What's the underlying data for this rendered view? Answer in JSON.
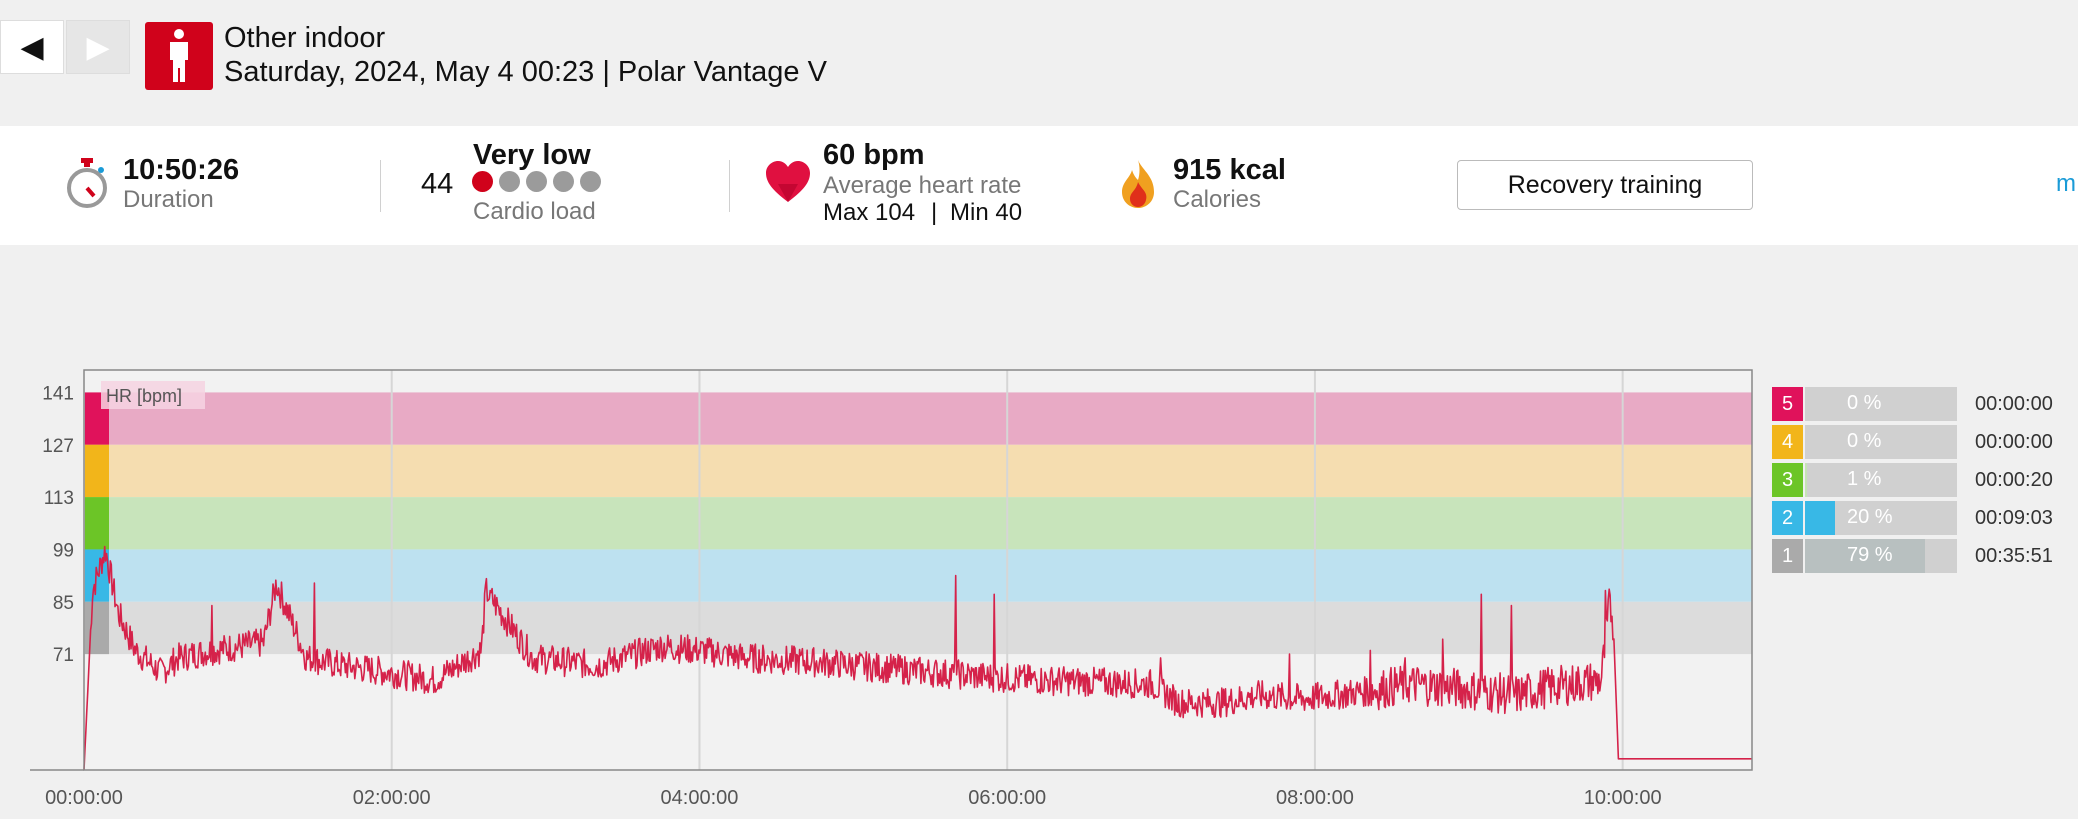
{
  "nav": {
    "prev_glyph": "◀",
    "next_glyph": "▶"
  },
  "header": {
    "sport_icon": "person-standing-icon",
    "sport": "Other indoor",
    "subtitle": "Saturday, 2024, May 4 00:23 | Polar Vantage V"
  },
  "summary": {
    "duration": {
      "icon": "stopwatch-icon",
      "value": "10:50:26",
      "label": "Duration"
    },
    "cardio": {
      "value": "44",
      "level": "Very low",
      "label": "Cardio load",
      "dots_total": 5,
      "dots_filled": 1
    },
    "heart": {
      "icon": "heart-icon",
      "value": "60 bpm",
      "label": "Average heart rate",
      "max_label": "Max 104",
      "divider": "|",
      "min_label": "Min 40"
    },
    "calories": {
      "icon": "flame-icon",
      "value": "915 kcal",
      "label": "Calories"
    },
    "benefit_button": "Recovery training",
    "more_link": "m"
  },
  "chart_data": {
    "type": "line",
    "series_label": "HR [bpm]",
    "y_ticks": [
      141,
      127,
      113,
      99,
      85,
      71
    ],
    "ylim": [
      40,
      147
    ],
    "x_ticks": [
      "00:00:00",
      "02:00:00",
      "04:00:00",
      "06:00:00",
      "08:00:00",
      "10:00:00"
    ],
    "x_duration_seconds": 39026,
    "zone_bands": [
      {
        "zone": 5,
        "from": 127,
        "to": 141,
        "color": "#e8aac5"
      },
      {
        "zone": 4,
        "from": 113,
        "to": 127,
        "color": "#f5ddb0"
      },
      {
        "zone": 3,
        "from": 99,
        "to": 113,
        "color": "#c8e4bb"
      },
      {
        "zone": 2,
        "from": 85,
        "to": 99,
        "color": "#bde1f0"
      },
      {
        "zone": 1,
        "from": 71,
        "to": 85,
        "color": "#dcdcdc"
      }
    ],
    "line_color": "#d5224a",
    "hr_profile": [
      [
        0,
        40
      ],
      [
        200,
        88
      ],
      [
        500,
        99
      ],
      [
        800,
        82
      ],
      [
        1200,
        72
      ],
      [
        1800,
        66
      ],
      [
        2200,
        70
      ],
      [
        3000,
        72
      ],
      [
        4200,
        74
      ],
      [
        4500,
        90
      ],
      [
        5200,
        70
      ],
      [
        6000,
        68
      ],
      [
        7200,
        66
      ],
      [
        8200,
        64
      ],
      [
        9300,
        72
      ],
      [
        9400,
        88
      ],
      [
        10500,
        70
      ],
      [
        12000,
        68
      ],
      [
        13500,
        73
      ],
      [
        14400,
        72
      ],
      [
        15500,
        70
      ],
      [
        17000,
        69
      ],
      [
        19000,
        67
      ],
      [
        21000,
        65
      ],
      [
        22500,
        64
      ],
      [
        25000,
        63
      ],
      [
        25600,
        58
      ],
      [
        26600,
        58
      ],
      [
        27500,
        60
      ],
      [
        28500,
        59
      ],
      [
        30000,
        61
      ],
      [
        31000,
        63
      ],
      [
        32000,
        62
      ],
      [
        33500,
        60
      ],
      [
        34200,
        62
      ],
      [
        35500,
        64
      ],
      [
        35700,
        85
      ],
      [
        35800,
        78
      ],
      [
        35900,
        43
      ],
      [
        39026,
        43
      ]
    ],
    "spikes": [
      [
        3000,
        84
      ],
      [
        5400,
        90
      ],
      [
        9500,
        88
      ],
      [
        20400,
        92
      ],
      [
        21300,
        87
      ],
      [
        25200,
        70
      ],
      [
        28200,
        71
      ],
      [
        30100,
        72
      ],
      [
        30900,
        70
      ],
      [
        31800,
        75
      ],
      [
        32700,
        87
      ],
      [
        33400,
        84
      ],
      [
        35600,
        88
      ]
    ]
  },
  "zones_table": [
    {
      "zone": "5",
      "pct_label": "0 %",
      "pct": 0,
      "time": "00:00:00",
      "color": "#e0125b",
      "fill": "#e8b0c8"
    },
    {
      "zone": "4",
      "pct_label": "0 %",
      "pct": 0,
      "time": "00:00:00",
      "color": "#f2b51a",
      "fill": "#f5dcaa"
    },
    {
      "zone": "3",
      "pct_label": "1 %",
      "pct": 1,
      "time": "00:00:20",
      "color": "#6cc527",
      "fill": "#c6e4b5"
    },
    {
      "zone": "2",
      "pct_label": "20 %",
      "pct": 20,
      "time": "00:09:03",
      "color": "#38b8e6",
      "fill": "#38b8e6"
    },
    {
      "zone": "1",
      "pct_label": "79 %",
      "pct": 79,
      "time": "00:35:51",
      "color": "#aaaaaa",
      "fill": "#b8c0c0"
    }
  ]
}
